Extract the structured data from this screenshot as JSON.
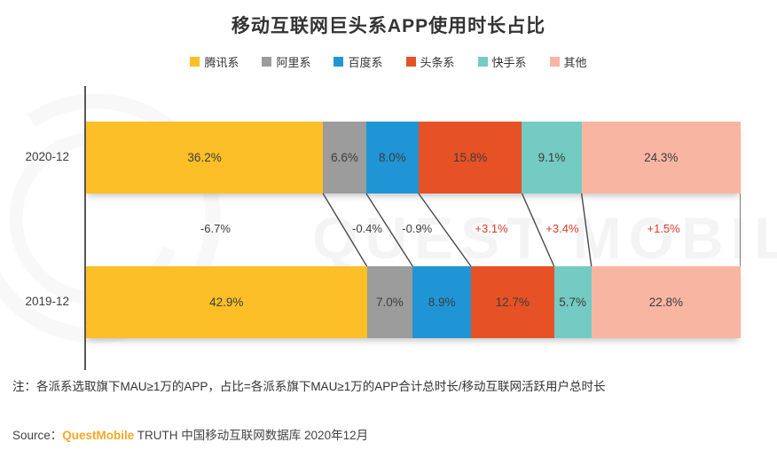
{
  "title": "移动互联网巨头系APP使用时长占比",
  "watermark": {
    "text": "QUEST MOBILE"
  },
  "chart_data": {
    "type": "bar",
    "stacked": true,
    "orientation": "horizontal",
    "title": "移动互联网巨头系APP使用时长占比",
    "categories": [
      "2020-12",
      "2019-12"
    ],
    "legend": [
      "腾讯系",
      "阿里系",
      "百度系",
      "头条系",
      "快手系",
      "其他"
    ],
    "legend_position": "top",
    "value_suffix": "%",
    "xlim": [
      0,
      100
    ],
    "grid": false,
    "series": [
      {
        "name": "腾讯系",
        "color": "#FCBF27",
        "values": [
          36.2,
          42.9
        ]
      },
      {
        "name": "阿里系",
        "color": "#9C9C9C",
        "values": [
          6.6,
          7.0
        ]
      },
      {
        "name": "百度系",
        "color": "#2095D5",
        "values": [
          8.0,
          8.9
        ]
      },
      {
        "name": "头条系",
        "color": "#E75126",
        "values": [
          15.8,
          12.7
        ]
      },
      {
        "name": "快手系",
        "color": "#74CBC3",
        "values": [
          9.1,
          5.7
        ]
      },
      {
        "name": "其他",
        "color": "#F8B6A2",
        "values": [
          24.3,
          22.8
        ]
      }
    ],
    "changes": [
      {
        "label": "-6.7%",
        "direction": "down"
      },
      {
        "label": "-0.4%",
        "direction": "down"
      },
      {
        "label": "-0.9%",
        "direction": "down"
      },
      {
        "label": "+3.1%",
        "direction": "up"
      },
      {
        "label": "+3.4%",
        "direction": "up"
      },
      {
        "label": "+1.5%",
        "direction": "up"
      }
    ],
    "change_colors": {
      "down": "#3d3d3d",
      "up": "#E03A2B"
    },
    "axis_color": "#58595b",
    "connector_color": "#4a4a4a"
  },
  "note": {
    "text": "注：各派系选取旗下MAU≥1万的APP，占比=各派系旗下MAU≥1万的APP合计总时长/移动互联网活跃用户总时长"
  },
  "source": {
    "prefix": "Source：",
    "brand": "QuestMobile",
    "brand_color": "#F7A823",
    "rest": " TRUTH 中国移动互联网数据库 2020年12月"
  }
}
